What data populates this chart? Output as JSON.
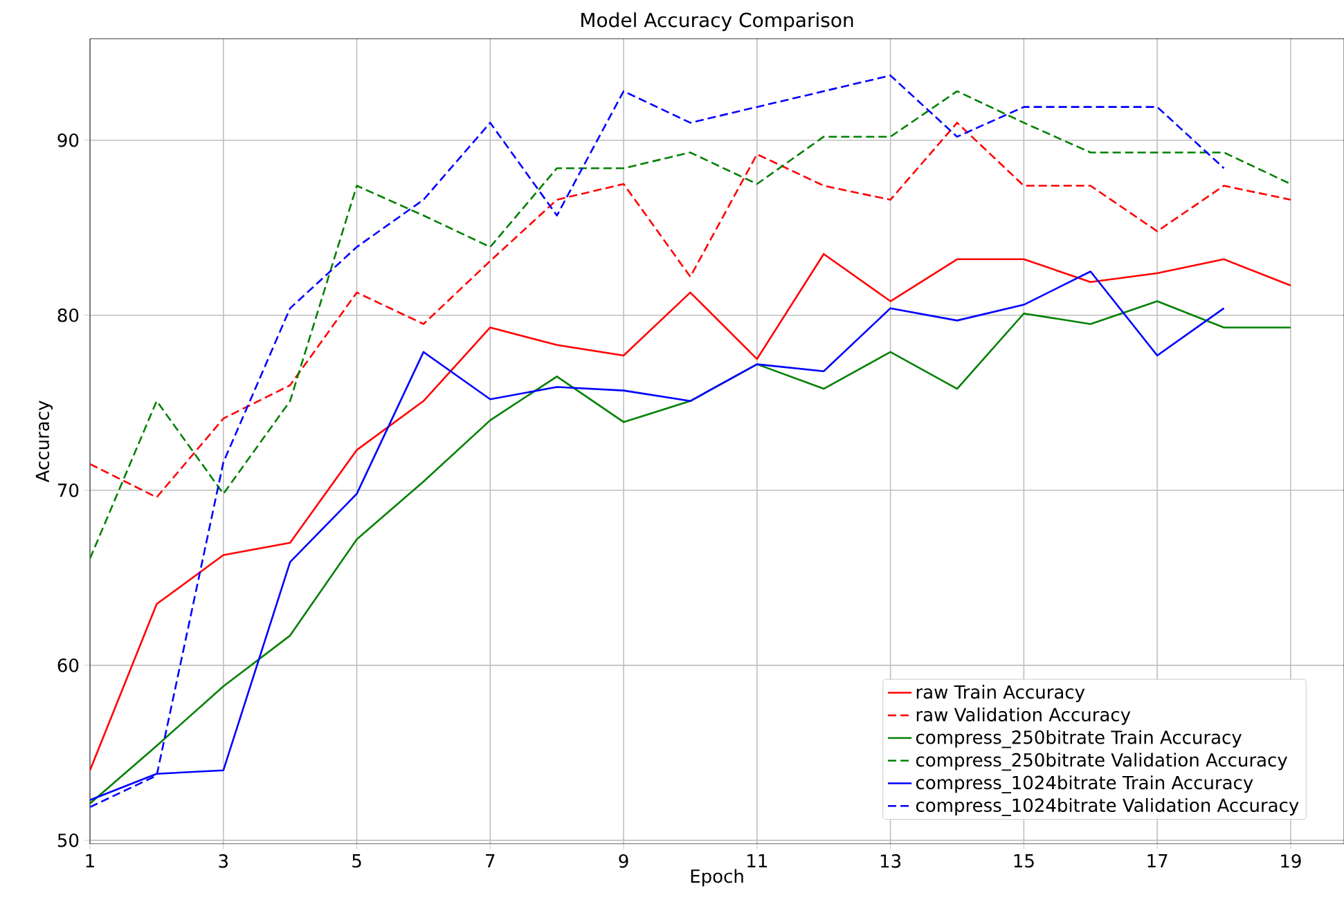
{
  "chart_data": {
    "type": "line",
    "title": "Model Accuracy Comparison",
    "xlabel": "Epoch",
    "ylabel": "Accuracy",
    "x": [
      1,
      2,
      3,
      4,
      5,
      6,
      7,
      8,
      9,
      10,
      11,
      12,
      13,
      14,
      15,
      16,
      17,
      18,
      19
    ],
    "xlim": [
      1,
      19.8
    ],
    "ylim": [
      49.8,
      95.8
    ],
    "xticks": [
      1,
      3,
      5,
      7,
      9,
      11,
      13,
      15,
      17,
      19
    ],
    "yticks": [
      50,
      60,
      70,
      80,
      90
    ],
    "grid": true,
    "legend": "bottom right",
    "series": [
      {
        "name": "raw Train Accuracy",
        "color": "#ff0000",
        "line_style": "solid",
        "values": [
          54.0,
          63.5,
          66.3,
          67.0,
          72.3,
          75.1,
          79.3,
          78.3,
          77.7,
          81.3,
          77.5,
          83.5,
          80.8,
          83.2,
          83.2,
          81.9,
          82.4,
          83.2,
          81.7
        ]
      },
      {
        "name": "raw Validation Accuracy",
        "color": "#ff0000",
        "line_style": "dashed",
        "values": [
          71.5,
          69.6,
          74.1,
          76.0,
          81.3,
          79.5,
          83.1,
          86.6,
          87.5,
          82.2,
          89.2,
          87.4,
          86.6,
          91.0,
          87.4,
          87.4,
          84.8,
          87.4,
          86.6
        ]
      },
      {
        "name": "compress_250bitrate Train Accuracy",
        "color": "#008000",
        "line_style": "solid",
        "values": [
          52.1,
          55.4,
          58.8,
          61.7,
          67.2,
          70.5,
          74.0,
          76.5,
          73.9,
          75.1,
          77.2,
          75.8,
          77.9,
          75.8,
          80.1,
          79.5,
          80.8,
          79.3,
          79.3
        ]
      },
      {
        "name": "compress_250bitrate Validation Accuracy",
        "color": "#008000",
        "line_style": "dashed",
        "values": [
          66.1,
          75.1,
          69.8,
          75.1,
          87.4,
          85.7,
          83.9,
          88.4,
          88.4,
          89.3,
          87.5,
          90.2,
          90.2,
          92.8,
          91.0,
          89.3,
          89.3,
          89.3,
          87.5
        ]
      },
      {
        "name": "compress_1024bitrate Train Accuracy",
        "color": "#0000ff",
        "line_style": "solid",
        "x": [
          1,
          2,
          3,
          4,
          5,
          6,
          7,
          8,
          9,
          10,
          11,
          12,
          13,
          14,
          15,
          16,
          17,
          18
        ],
        "values": [
          52.3,
          53.8,
          54.0,
          65.9,
          69.8,
          77.9,
          75.2,
          75.9,
          75.7,
          75.1,
          77.2,
          76.8,
          80.4,
          79.7,
          80.6,
          82.5,
          77.7,
          80.4
        ]
      },
      {
        "name": "compress_1024bitrate Validation Accuracy",
        "color": "#0000ff",
        "line_style": "dashed",
        "x": [
          1,
          2,
          3,
          4,
          5,
          6,
          7,
          8,
          9,
          10,
          11,
          12,
          13,
          14,
          15,
          16,
          17,
          18
        ],
        "values": [
          51.9,
          53.7,
          71.6,
          80.4,
          83.9,
          86.6,
          91.0,
          85.7,
          92.8,
          91.0,
          91.9,
          92.8,
          93.7,
          90.2,
          91.9,
          91.9,
          91.9,
          88.4
        ]
      }
    ]
  }
}
